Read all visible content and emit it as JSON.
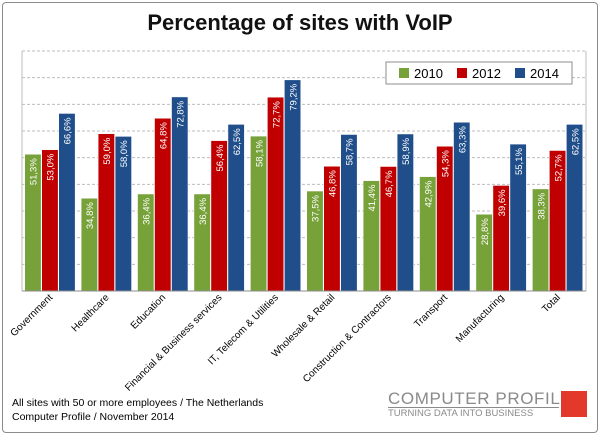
{
  "chart_data": {
    "type": "bar",
    "title": "Percentage of sites with VoIP",
    "categories": [
      "Government",
      "Healthcare",
      "Education",
      "Financial & Business services",
      "IT, Telecom & Utilities",
      "Wholesale & Retail",
      "Construction & Contractors",
      "Transport",
      "Manufacturing",
      "Total"
    ],
    "series": [
      {
        "name": "2010",
        "color": "#77a23a",
        "values": [
          51.3,
          34.8,
          36.4,
          36.4,
          58.1,
          37.5,
          41.4,
          42.9,
          28.8,
          38.3
        ],
        "labels": [
          "51,3%",
          "34,8%",
          "36,4%",
          "36,4%",
          "58,1%",
          "37,5%",
          "41,4%",
          "42,9%",
          "28,8%",
          "38,3%"
        ]
      },
      {
        "name": "2012",
        "color": "#c00000",
        "values": [
          53.0,
          59.0,
          64.8,
          56.4,
          72.7,
          46.8,
          46.7,
          54.3,
          39.6,
          52.7
        ],
        "labels": [
          "53,0%",
          "59,0%",
          "64,8%",
          "56,4%",
          "72,7%",
          "46,8%",
          "46,7%",
          "54,3%",
          "39,6%",
          "52,7%"
        ]
      },
      {
        "name": "2014",
        "color": "#1f4e8a",
        "values": [
          66.6,
          58.0,
          72.8,
          62.5,
          79.2,
          58.7,
          58.9,
          63.3,
          55.1,
          62.5
        ],
        "labels": [
          "66,6%",
          "58,0%",
          "72,8%",
          "62,5%",
          "79,2%",
          "58,7%",
          "58,9%",
          "63,3%",
          "55,1%",
          "62,5%"
        ]
      }
    ],
    "ylim": [
      0,
      90
    ],
    "gridlines": "dashed",
    "legend": "top-right"
  },
  "footnote": {
    "line1": "All sites with 50 or more employees / The Netherlands",
    "line2": "Computer Profile / November 2014"
  },
  "logo": {
    "name": "COMPUTER PROFILE",
    "tagline": "TURNING DATA INTO BUSINESS",
    "square_color": "#e2392b"
  }
}
